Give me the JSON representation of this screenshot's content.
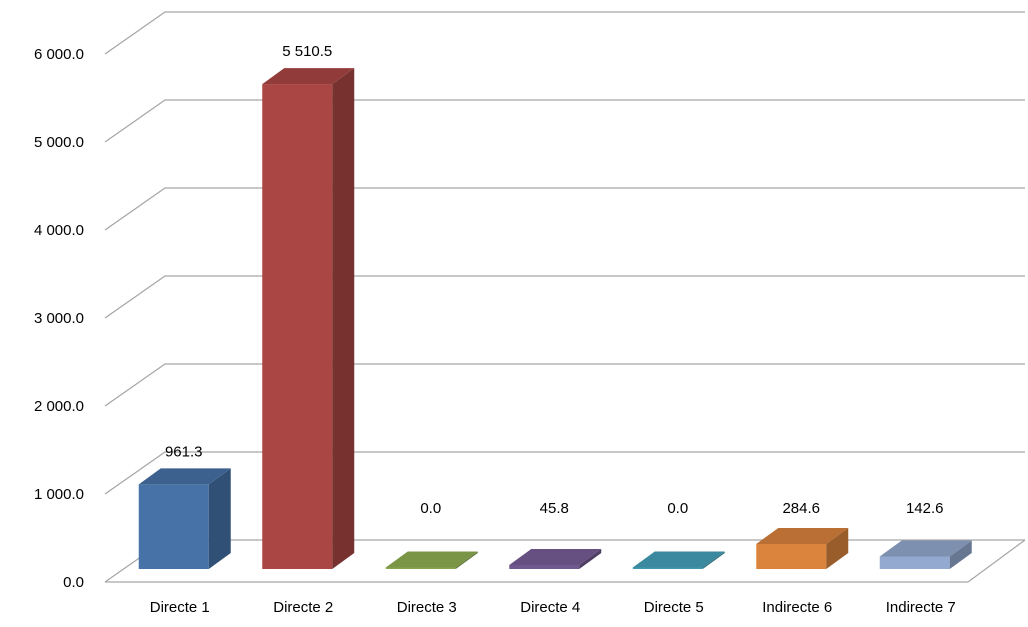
{
  "chart_data": {
    "type": "bar",
    "categories": [
      "Directe 1",
      "Directe 2",
      "Directe 3",
      "Directe 4",
      "Directe 5",
      "Indirecte 6",
      "Indirecte 7"
    ],
    "values": [
      961.3,
      5510.5,
      0.0,
      45.8,
      0.0,
      284.6,
      142.6
    ],
    "data_labels": [
      "961.3",
      "5 510.5",
      "0.0",
      "45.8",
      "0.0",
      "284.6",
      "142.6"
    ],
    "y_ticks": [
      0,
      1000,
      2000,
      3000,
      4000,
      5000,
      6000
    ],
    "y_tick_labels": [
      "0.0",
      "1 000.0",
      "2 000.0",
      "3 000.0",
      "4 000.0",
      "5 000.0",
      "6 000.0"
    ],
    "ylim": [
      0,
      6500
    ],
    "grid": true,
    "legend": "none",
    "colors": [
      "#4672a8",
      "#aa4744",
      "#89a54e",
      "#71588f",
      "#4198af",
      "#db843d",
      "#93a9cf"
    ]
  }
}
